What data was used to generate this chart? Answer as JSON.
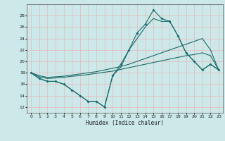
{
  "xlabel": "Humidex (Indice chaleur)",
  "xlim": [
    -0.5,
    23.5
  ],
  "ylim": [
    11,
    30
  ],
  "yticks": [
    12,
    14,
    16,
    18,
    20,
    22,
    24,
    26,
    28
  ],
  "xticks": [
    0,
    1,
    2,
    3,
    4,
    5,
    6,
    7,
    8,
    9,
    10,
    11,
    12,
    13,
    14,
    15,
    16,
    17,
    18,
    19,
    20,
    21,
    22,
    23
  ],
  "bg_color": "#cce8e8",
  "grid_color": "#e8b8b8",
  "line_color": "#1a6b6b",
  "line1": [
    18,
    17,
    16.5,
    16.5,
    16,
    15,
    14,
    13,
    13,
    12,
    17.5,
    19.5,
    22,
    25,
    26.5,
    29,
    27.5,
    27,
    24.5,
    21.5,
    20,
    18.5,
    19.5,
    18.5
  ],
  "line2": [
    18,
    17,
    16.5,
    16.5,
    16,
    15,
    14,
    13,
    13,
    12,
    17.5,
    19,
    22,
    24,
    26,
    27.5,
    27,
    27,
    24.5,
    21.5,
    20,
    18.5,
    19.5,
    18.5
  ],
  "line3": [
    18,
    17.5,
    17.2,
    17.3,
    17.4,
    17.6,
    17.8,
    18.0,
    18.2,
    18.5,
    18.8,
    19.1,
    19.5,
    20.0,
    20.5,
    21.0,
    21.5,
    22.0,
    22.5,
    23.0,
    23.5,
    24.0,
    22.0,
    18.5
  ],
  "line4": [
    18,
    17.3,
    17.0,
    17.1,
    17.2,
    17.4,
    17.5,
    17.7,
    17.9,
    18.1,
    18.3,
    18.6,
    18.9,
    19.2,
    19.5,
    19.8,
    20.1,
    20.4,
    20.7,
    21.0,
    21.2,
    21.5,
    21.0,
    18.5
  ]
}
